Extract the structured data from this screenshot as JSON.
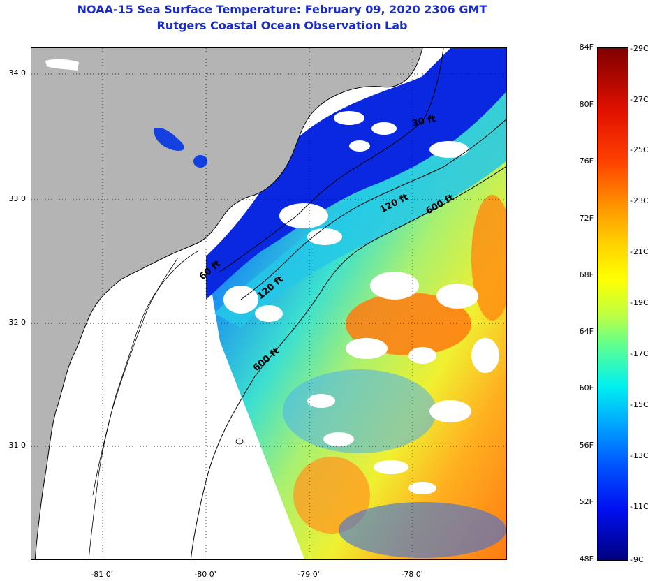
{
  "title_line1": "NOAA-15 Sea Surface Temperature:  February 09, 2020 2306 GMT",
  "title_line2": "Rutgers Coastal Ocean Observation Lab",
  "lat_ticks": [
    "34 0'",
    "33 0'",
    "32 0'",
    "31 0'"
  ],
  "lon_ticks": [
    "-81 0'",
    "-80 0'",
    "-79 0'",
    "-78 0'"
  ],
  "isobaths": [
    "30 ft",
    "120 ft",
    "600 ft",
    "60 ft",
    "120 ft",
    "600 ft"
  ],
  "colorbar_f": [
    "84F",
    "80F",
    "76F",
    "72F",
    "68F",
    "64F",
    "60F",
    "56F",
    "52F",
    "48F"
  ],
  "colorbar_c": [
    "29C",
    "27C",
    "25C",
    "23C",
    "21C",
    "19C",
    "17C",
    "15C",
    "13C",
    "11C",
    "9C"
  ],
  "colors": {
    "title": "#1a2cc8",
    "land": "#b4b4b4",
    "cloud": "#ffffff",
    "scale": [
      "#7f0000",
      "#ff0000",
      "#ff8000",
      "#ffff00",
      "#80ff80",
      "#00ffff",
      "#0080ff",
      "#0000ff",
      "#00007f"
    ]
  }
}
